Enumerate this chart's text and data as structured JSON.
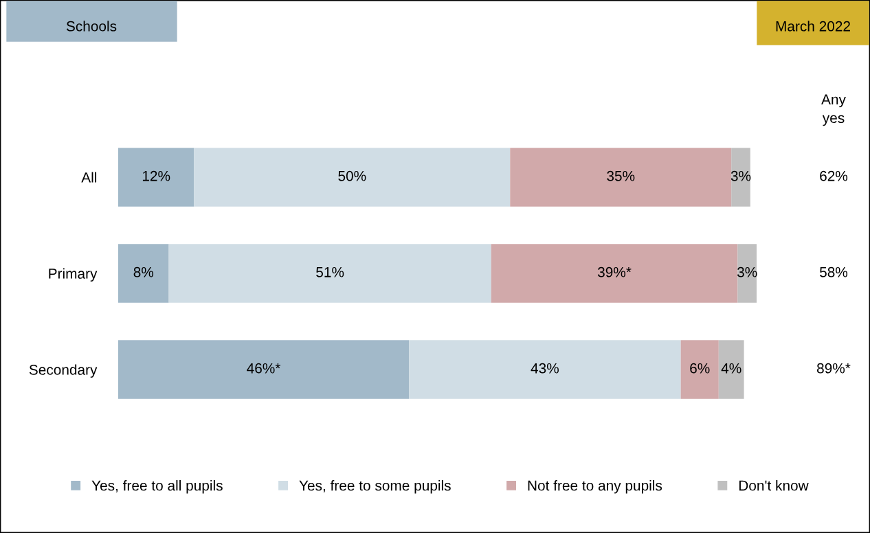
{
  "chart_data": {
    "type": "bar",
    "orientation": "horizontal",
    "stacked": true,
    "title": "Schools",
    "subtitle": "March 2022",
    "categories": [
      "All",
      "Primary",
      "Secondary"
    ],
    "series": [
      {
        "name": "Yes, free to all pupils",
        "color": "#a2b9c9",
        "values": [
          12,
          8,
          46
        ],
        "value_labels": [
          "12%",
          "8%",
          "46%*"
        ]
      },
      {
        "name": "Yes, free to some pupils",
        "color": "#d0dde5",
        "values": [
          50,
          51,
          43
        ],
        "value_labels": [
          "50%",
          "51%",
          "43%"
        ]
      },
      {
        "name": "Not free to any pupils",
        "color": "#d1a9aa",
        "values": [
          35,
          39,
          6
        ],
        "value_labels": [
          "35%",
          "39%*",
          "6%"
        ]
      },
      {
        "name": "Don't know",
        "color": "#c0c0c0",
        "values": [
          3,
          3,
          4
        ],
        "value_labels": [
          "3%",
          "3%",
          "4%"
        ]
      }
    ],
    "annotations": [
      "Any\nyes",
      "62%",
      "58%",
      "89%*"
    ],
    "legend": "bottom",
    "grid": false
  }
}
